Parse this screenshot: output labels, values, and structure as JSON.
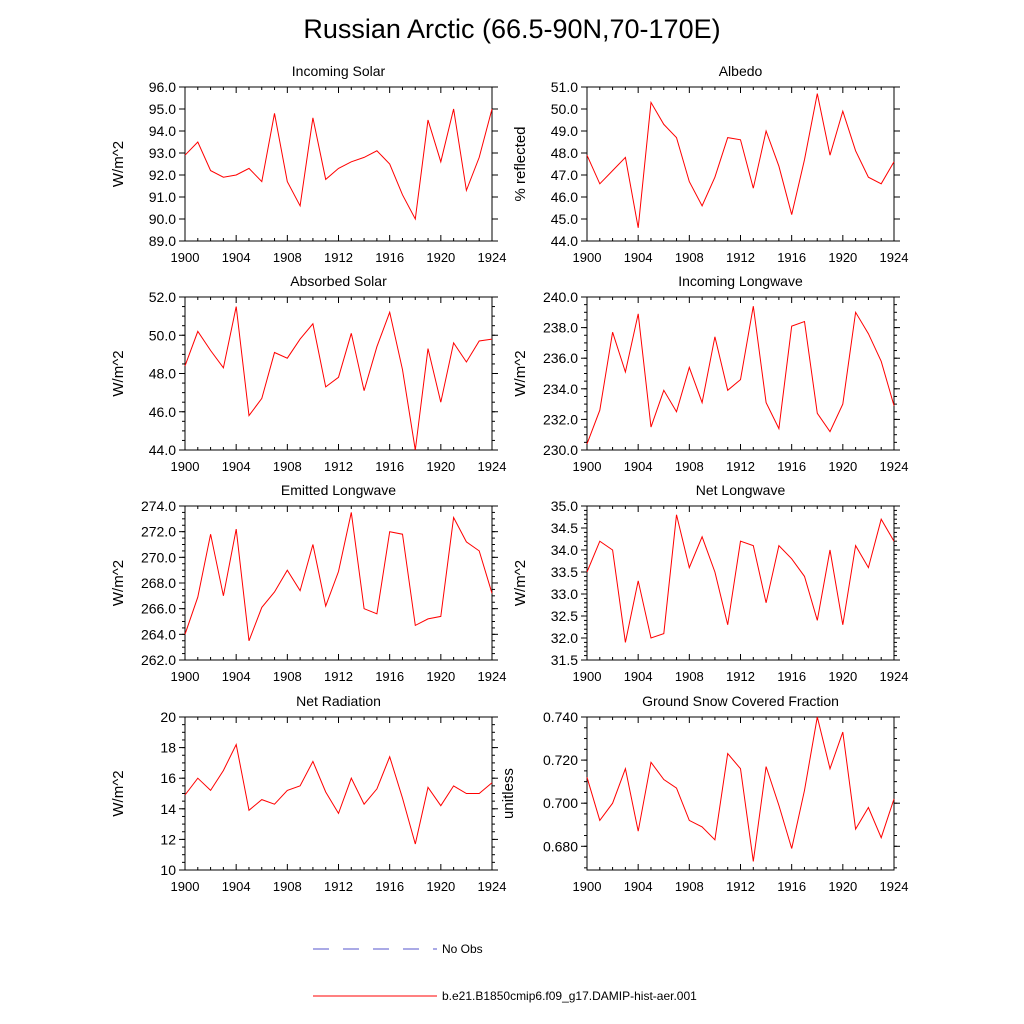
{
  "page": {
    "title": "Russian Arctic (66.5-90N,70-170E)"
  },
  "legend": {
    "items": [
      {
        "label": "No Obs",
        "color": "#5555cc",
        "dash": true
      },
      {
        "label": "b.e21.B1850cmip6.f09_g17.DAMIP-hist-aer.001",
        "color": "#ff0000",
        "dash": false
      }
    ]
  },
  "chart_data": [
    {
      "type": "line",
      "title": "Incoming Solar",
      "ylabel": "W/m^2",
      "xlim": [
        1900,
        1924
      ],
      "ylim": [
        89,
        96
      ],
      "xticks": [
        1900,
        1904,
        1908,
        1912,
        1916,
        1920,
        1924
      ],
      "yticks": [
        89,
        90,
        91,
        92,
        93,
        94,
        95,
        96
      ],
      "ytick_labels": [
        "89.0",
        "90.0",
        "91.0",
        "92.0",
        "93.0",
        "94.0",
        "95.0",
        "96.0"
      ],
      "color": "#ff0000",
      "x": [
        1900,
        1901,
        1902,
        1903,
        1904,
        1905,
        1906,
        1907,
        1908,
        1909,
        1910,
        1911,
        1912,
        1913,
        1914,
        1915,
        1916,
        1917,
        1918,
        1919,
        1920,
        1921,
        1922,
        1923,
        1924
      ],
      "y": [
        92.9,
        93.5,
        92.2,
        91.9,
        92.0,
        92.3,
        91.7,
        94.8,
        91.7,
        90.6,
        94.6,
        91.8,
        92.3,
        92.6,
        92.8,
        93.1,
        92.5,
        91.1,
        90.0,
        94.5,
        92.6,
        95.0,
        91.3,
        92.8,
        95.0
      ]
    },
    {
      "type": "line",
      "title": "Albedo",
      "ylabel": "% reflected",
      "xlim": [
        1900,
        1924
      ],
      "ylim": [
        44,
        51
      ],
      "xticks": [
        1900,
        1904,
        1908,
        1912,
        1916,
        1920,
        1924
      ],
      "yticks": [
        44,
        45,
        46,
        47,
        48,
        49,
        50,
        51
      ],
      "ytick_labels": [
        "44.0",
        "45.0",
        "46.0",
        "47.0",
        "48.0",
        "49.0",
        "50.0",
        "51.0"
      ],
      "color": "#ff0000",
      "x": [
        1900,
        1901,
        1902,
        1903,
        1904,
        1905,
        1906,
        1907,
        1908,
        1909,
        1910,
        1911,
        1912,
        1913,
        1914,
        1915,
        1916,
        1917,
        1918,
        1919,
        1920,
        1921,
        1922,
        1923,
        1924
      ],
      "y": [
        47.9,
        46.6,
        47.2,
        47.8,
        44.6,
        50.3,
        49.3,
        48.7,
        46.7,
        45.6,
        46.9,
        48.7,
        48.6,
        46.4,
        49.0,
        47.4,
        45.2,
        47.7,
        50.7,
        47.9,
        49.9,
        48.1,
        46.9,
        46.6,
        47.6
      ]
    },
    {
      "type": "line",
      "title": "Absorbed Solar",
      "ylabel": "W/m^2",
      "xlim": [
        1900,
        1924
      ],
      "ylim": [
        44,
        52
      ],
      "xticks": [
        1900,
        1904,
        1908,
        1912,
        1916,
        1920,
        1924
      ],
      "yticks": [
        44,
        46,
        48,
        50,
        52
      ],
      "ytick_labels": [
        "44.0",
        "46.0",
        "48.0",
        "50.0",
        "52.0"
      ],
      "minor_step": 0.5,
      "color": "#ff0000",
      "x": [
        1900,
        1901,
        1902,
        1903,
        1904,
        1905,
        1906,
        1907,
        1908,
        1909,
        1910,
        1911,
        1912,
        1913,
        1914,
        1915,
        1916,
        1917,
        1918,
        1919,
        1920,
        1921,
        1922,
        1923,
        1924
      ],
      "y": [
        48.4,
        50.2,
        49.2,
        48.3,
        51.5,
        45.8,
        46.7,
        49.1,
        48.8,
        49.8,
        50.6,
        47.3,
        47.8,
        50.1,
        47.1,
        49.4,
        51.2,
        48.2,
        44.0,
        49.3,
        46.5,
        49.6,
        48.6,
        49.7,
        49.8
      ]
    },
    {
      "type": "line",
      "title": "Incoming Longwave",
      "ylabel": "W/m^2",
      "xlim": [
        1900,
        1924
      ],
      "ylim": [
        230,
        240
      ],
      "xticks": [
        1900,
        1904,
        1908,
        1912,
        1916,
        1920,
        1924
      ],
      "yticks": [
        230,
        232,
        234,
        236,
        238,
        240
      ],
      "ytick_labels": [
        "230.0",
        "232.0",
        "234.0",
        "236.0",
        "238.0",
        "240.0"
      ],
      "minor_step": 0.5,
      "color": "#ff0000",
      "x": [
        1900,
        1901,
        1902,
        1903,
        1904,
        1905,
        1906,
        1907,
        1908,
        1909,
        1910,
        1911,
        1912,
        1913,
        1914,
        1915,
        1916,
        1917,
        1918,
        1919,
        1920,
        1921,
        1922,
        1923,
        1924
      ],
      "y": [
        230.4,
        232.6,
        237.7,
        235.1,
        238.9,
        231.5,
        233.9,
        232.5,
        235.4,
        233.1,
        237.4,
        233.9,
        234.6,
        239.4,
        233.1,
        231.4,
        238.1,
        238.4,
        232.4,
        231.2,
        233.0,
        239.0,
        237.6,
        235.8,
        232.9
      ]
    },
    {
      "type": "line",
      "title": "Emitted Longwave",
      "ylabel": "W/m^2",
      "xlim": [
        1900,
        1924
      ],
      "ylim": [
        262,
        274
      ],
      "xticks": [
        1900,
        1904,
        1908,
        1912,
        1916,
        1920,
        1924
      ],
      "yticks": [
        262,
        264,
        266,
        268,
        270,
        272,
        274
      ],
      "ytick_labels": [
        "262.0",
        "264.0",
        "266.0",
        "268.0",
        "270.0",
        "272.0",
        "274.0"
      ],
      "minor_step": 0.5,
      "color": "#ff0000",
      "x": [
        1900,
        1901,
        1902,
        1903,
        1904,
        1905,
        1906,
        1907,
        1908,
        1909,
        1910,
        1911,
        1912,
        1913,
        1914,
        1915,
        1916,
        1917,
        1918,
        1919,
        1920,
        1921,
        1922,
        1923,
        1924
      ],
      "y": [
        264.0,
        266.9,
        271.8,
        267.0,
        272.2,
        263.5,
        266.1,
        267.3,
        269.0,
        267.4,
        271.0,
        266.2,
        268.9,
        273.5,
        266.0,
        265.6,
        272.0,
        271.8,
        264.7,
        265.2,
        265.4,
        273.1,
        271.2,
        270.5,
        267.2
      ]
    },
    {
      "type": "line",
      "title": "Net Longwave",
      "ylabel": "W/m^2",
      "xlim": [
        1900,
        1924
      ],
      "ylim": [
        31.5,
        35
      ],
      "xticks": [
        1900,
        1904,
        1908,
        1912,
        1916,
        1920,
        1924
      ],
      "yticks": [
        31.5,
        32,
        32.5,
        33,
        33.5,
        34,
        34.5,
        35
      ],
      "ytick_labels": [
        "31.5",
        "32.0",
        "32.5",
        "33.0",
        "33.5",
        "34.0",
        "34.5",
        "35.0"
      ],
      "minor_step": 0.1,
      "color": "#ff0000",
      "x": [
        1900,
        1901,
        1902,
        1903,
        1904,
        1905,
        1906,
        1907,
        1908,
        1909,
        1910,
        1911,
        1912,
        1913,
        1914,
        1915,
        1916,
        1917,
        1918,
        1919,
        1920,
        1921,
        1922,
        1923,
        1924
      ],
      "y": [
        33.5,
        34.2,
        34.0,
        31.9,
        33.3,
        32.0,
        32.1,
        34.8,
        33.6,
        34.3,
        33.5,
        32.3,
        34.2,
        34.1,
        32.8,
        34.1,
        33.8,
        33.4,
        32.4,
        34.0,
        32.3,
        34.1,
        33.6,
        34.7,
        34.2
      ]
    },
    {
      "type": "line",
      "title": "Net Radiation",
      "ylabel": "W/m^2",
      "xlim": [
        1900,
        1924
      ],
      "ylim": [
        10,
        20
      ],
      "xticks": [
        1900,
        1904,
        1908,
        1912,
        1916,
        1920,
        1924
      ],
      "yticks": [
        10,
        12,
        14,
        16,
        18,
        20
      ],
      "ytick_labels": [
        "10",
        "12",
        "14",
        "16",
        "18",
        "20"
      ],
      "minor_step": 0.5,
      "color": "#ff0000",
      "x": [
        1900,
        1901,
        1902,
        1903,
        1904,
        1905,
        1906,
        1907,
        1908,
        1909,
        1910,
        1911,
        1912,
        1913,
        1914,
        1915,
        1916,
        1917,
        1918,
        1919,
        1920,
        1921,
        1922,
        1923,
        1924
      ],
      "y": [
        14.9,
        16.0,
        15.2,
        16.5,
        18.2,
        13.9,
        14.6,
        14.3,
        15.2,
        15.5,
        17.1,
        15.1,
        13.7,
        16.0,
        14.3,
        15.3,
        17.4,
        14.7,
        11.7,
        15.4,
        14.2,
        15.5,
        15.0,
        15.0,
        15.7
      ]
    },
    {
      "type": "line",
      "title": "Ground Snow Covered Fraction",
      "ylabel": "unitless",
      "xlim": [
        1900,
        1924
      ],
      "ylim": [
        0.669,
        0.74
      ],
      "xticks": [
        1900,
        1904,
        1908,
        1912,
        1916,
        1920,
        1924
      ],
      "yticks": [
        0.68,
        0.7,
        0.72,
        0.74
      ],
      "ytick_labels": [
        "0.680",
        "0.700",
        "0.720",
        "0.740"
      ],
      "minor_step": 0.005,
      "color": "#ff0000",
      "x": [
        1900,
        1901,
        1902,
        1903,
        1904,
        1905,
        1906,
        1907,
        1908,
        1909,
        1910,
        1911,
        1912,
        1913,
        1914,
        1915,
        1916,
        1917,
        1918,
        1919,
        1920,
        1921,
        1922,
        1923,
        1924
      ],
      "y": [
        0.712,
        0.692,
        0.7,
        0.716,
        0.687,
        0.719,
        0.711,
        0.707,
        0.692,
        0.689,
        0.683,
        0.723,
        0.716,
        0.673,
        0.717,
        0.699,
        0.679,
        0.706,
        0.74,
        0.716,
        0.733,
        0.688,
        0.698,
        0.684,
        0.702
      ]
    }
  ]
}
